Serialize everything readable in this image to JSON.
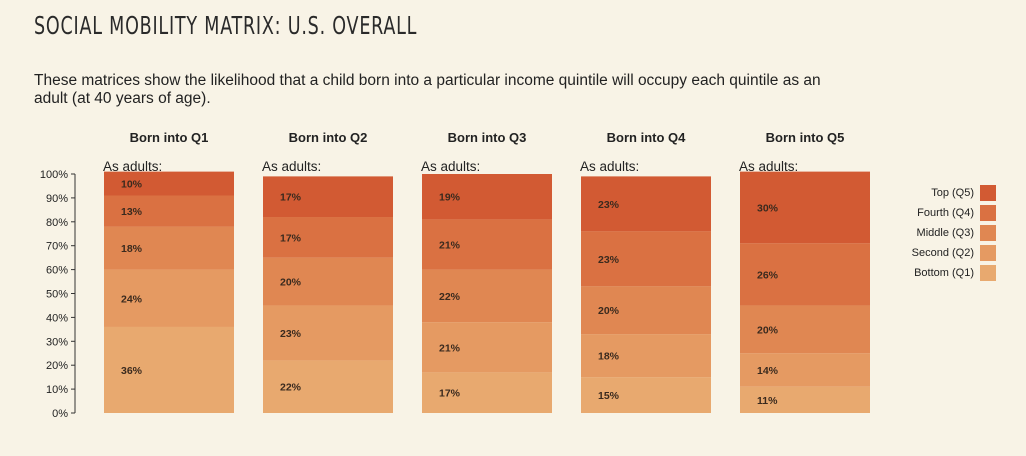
{
  "title": "SOCIAL MOBILITY MATRIX: U.S. OVERALL",
  "subtitle": "These matrices show the likelihood that a child born into a particular income quintile will occupy each quintile as an adult (at 40 years of age).",
  "colors": {
    "background": "#f8f3e6",
    "Q1": "#e8a96f",
    "Q2": "#e59a62",
    "Q3": "#e08752",
    "Q4": "#da7142",
    "Q5": "#d25a33"
  },
  "legend": [
    {
      "key": "Q5",
      "label": "Top (Q5)"
    },
    {
      "key": "Q4",
      "label": "Fourth (Q4)"
    },
    {
      "key": "Q3",
      "label": "Middle (Q3)"
    },
    {
      "key": "Q2",
      "label": "Second (Q2)"
    },
    {
      "key": "Q1",
      "label": "Bottom (Q1)"
    }
  ],
  "chart_data": {
    "type": "bar",
    "stacked": true,
    "categories": [
      "Born into Q1",
      "Born into Q2",
      "Born into Q3",
      "Born into Q4",
      "Born into Q5"
    ],
    "subheader": "As adults:",
    "ylim": [
      0,
      100
    ],
    "yticks": [
      "0%",
      "10%",
      "20%",
      "30%",
      "40%",
      "50%",
      "60%",
      "70%",
      "80%",
      "90%",
      "100%"
    ],
    "series": [
      {
        "name": "Bottom (Q1)",
        "key": "Q1",
        "values": [
          36,
          22,
          17,
          15,
          11
        ]
      },
      {
        "name": "Second (Q2)",
        "key": "Q2",
        "values": [
          24,
          23,
          21,
          18,
          14
        ]
      },
      {
        "name": "Middle (Q3)",
        "key": "Q3",
        "values": [
          18,
          20,
          22,
          20,
          20
        ]
      },
      {
        "name": "Fourth (Q4)",
        "key": "Q4",
        "values": [
          13,
          17,
          21,
          23,
          26
        ]
      },
      {
        "name": "Top (Q5)",
        "key": "Q5",
        "values": [
          10,
          17,
          19,
          23,
          30
        ]
      }
    ],
    "legend_position": "right"
  }
}
